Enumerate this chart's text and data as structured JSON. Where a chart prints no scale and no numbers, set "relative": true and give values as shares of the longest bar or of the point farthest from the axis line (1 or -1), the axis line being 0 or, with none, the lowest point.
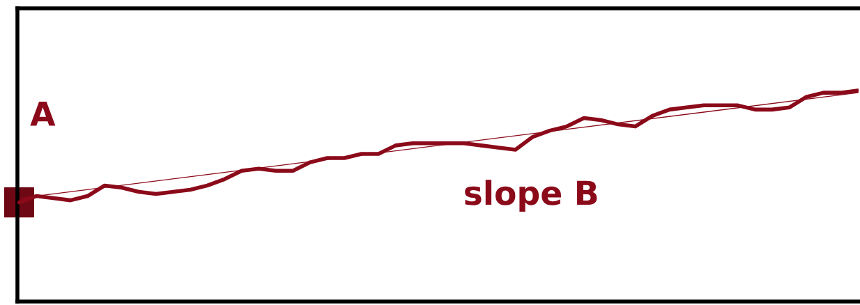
{
  "chart_data": {
    "type": "line",
    "relative": true,
    "grid": false,
    "legend": false,
    "tick_labels": false,
    "categories": [
      null,
      null,
      null,
      null,
      null,
      null,
      null,
      null,
      null,
      null,
      null,
      null,
      null,
      null,
      null,
      null,
      null,
      null,
      null,
      null,
      null,
      null,
      null,
      null,
      null,
      null,
      null,
      null,
      null,
      null,
      null,
      null,
      null,
      null,
      null,
      null,
      null,
      null,
      null,
      null,
      null,
      null,
      null,
      null,
      null,
      null,
      null,
      null,
      null,
      null
    ],
    "series": [
      {
        "color": "#8b0a1a",
        "line_style": "solid",
        "values": [
          0.47,
          0.5,
          0.49,
          0.48,
          0.5,
          0.55,
          0.54,
          0.52,
          0.51,
          0.52,
          0.53,
          0.55,
          0.58,
          0.62,
          0.63,
          0.62,
          0.62,
          0.66,
          0.68,
          0.68,
          0.7,
          0.7,
          0.74,
          0.75,
          0.75,
          0.75,
          0.75,
          0.74,
          0.73,
          0.72,
          0.78,
          0.81,
          0.83,
          0.87,
          0.86,
          0.84,
          0.83,
          0.88,
          0.91,
          0.92,
          0.93,
          0.93,
          0.93,
          0.91,
          0.91,
          0.92,
          0.97,
          0.99,
          0.99,
          1.0
        ]
      },
      {
        "color": "#8b0a1a",
        "line_style": "solid",
        "values": [
          0.49,
          null,
          null,
          null,
          null,
          null,
          null,
          null,
          null,
          null,
          null,
          null,
          null,
          null,
          null,
          null,
          null,
          null,
          null,
          null,
          null,
          null,
          null,
          null,
          null,
          null,
          null,
          null,
          null,
          null,
          null,
          null,
          null,
          null,
          null,
          null,
          null,
          null,
          null,
          null,
          null,
          null,
          null,
          null,
          null,
          null,
          null,
          null,
          null,
          0.99
        ]
      }
    ],
    "annotations": [
      "A",
      "slope B"
    ]
  }
}
